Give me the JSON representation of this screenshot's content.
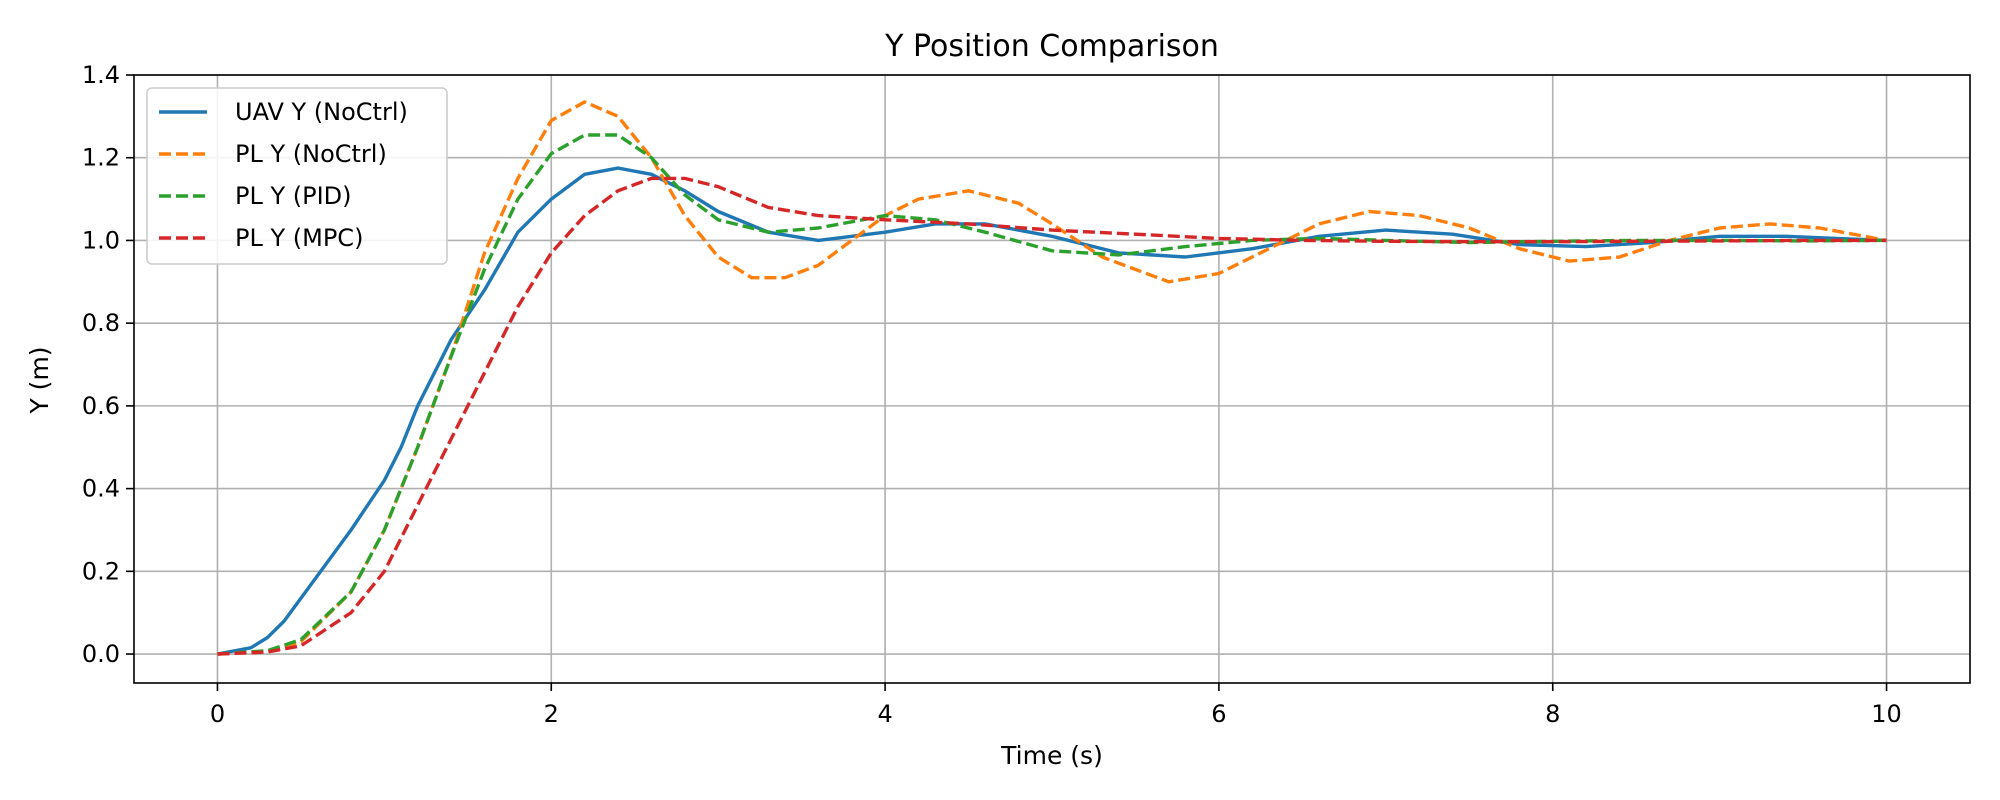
{
  "chart_data": {
    "type": "line",
    "title": "Y Position Comparison",
    "xlabel": "Time (s)",
    "ylabel": "Y (m)",
    "xlim": [
      -0.5,
      10.5
    ],
    "ylim": [
      -0.07,
      1.4
    ],
    "xticks": [
      0,
      2,
      4,
      6,
      8,
      10
    ],
    "yticks": [
      0.0,
      0.2,
      0.4,
      0.6,
      0.8,
      1.0,
      1.2,
      1.4
    ],
    "xtick_labels": [
      "0",
      "2",
      "4",
      "6",
      "8",
      "10"
    ],
    "ytick_labels": [
      "0.0",
      "0.2",
      "0.4",
      "0.6",
      "0.8",
      "1.0",
      "1.2",
      "1.4"
    ],
    "grid": true,
    "legend_position": "top-left",
    "series": [
      {
        "name": "UAV Y (NoCtrl)",
        "color": "#1f77b4",
        "style": "solid",
        "x": [
          0,
          0.2,
          0.3,
          0.4,
          0.6,
          0.8,
          1.0,
          1.1,
          1.2,
          1.4,
          1.6,
          1.8,
          2.0,
          2.2,
          2.4,
          2.6,
          2.8,
          3.0,
          3.3,
          3.6,
          4.0,
          4.3,
          4.6,
          5.0,
          5.4,
          5.8,
          6.2,
          6.6,
          7.0,
          7.4,
          7.8,
          8.2,
          8.6,
          9.0,
          9.4,
          9.7,
          10.0
        ],
        "y": [
          0.0,
          0.015,
          0.04,
          0.08,
          0.19,
          0.3,
          0.42,
          0.5,
          0.6,
          0.76,
          0.88,
          1.02,
          1.1,
          1.16,
          1.175,
          1.16,
          1.12,
          1.07,
          1.02,
          1.0,
          1.02,
          1.04,
          1.04,
          1.01,
          0.97,
          0.96,
          0.98,
          1.01,
          1.025,
          1.015,
          0.99,
          0.985,
          0.995,
          1.01,
          1.01,
          1.005,
          1.0
        ]
      },
      {
        "name": "PL Y (NoCtrl)",
        "color": "#ff7f0e",
        "style": "dashed",
        "x": [
          0,
          0.3,
          0.5,
          0.8,
          1.0,
          1.2,
          1.4,
          1.6,
          1.8,
          2.0,
          2.2,
          2.4,
          2.6,
          2.8,
          3.0,
          3.2,
          3.4,
          3.6,
          3.8,
          4.0,
          4.2,
          4.5,
          4.8,
          5.0,
          5.3,
          5.7,
          6.0,
          6.3,
          6.6,
          6.9,
          7.2,
          7.5,
          7.8,
          8.1,
          8.4,
          8.7,
          9.0,
          9.3,
          9.6,
          10.0
        ],
        "y": [
          0.0,
          0.005,
          0.03,
          0.15,
          0.3,
          0.5,
          0.72,
          0.97,
          1.15,
          1.29,
          1.335,
          1.3,
          1.2,
          1.06,
          0.96,
          0.91,
          0.91,
          0.94,
          1.0,
          1.06,
          1.1,
          1.12,
          1.09,
          1.04,
          0.96,
          0.9,
          0.92,
          0.98,
          1.04,
          1.07,
          1.06,
          1.03,
          0.98,
          0.95,
          0.96,
          1.0,
          1.03,
          1.04,
          1.03,
          1.0
        ]
      },
      {
        "name": "PL Y (PID)",
        "color": "#2ca02c",
        "style": "dashed",
        "x": [
          0,
          0.3,
          0.5,
          0.8,
          1.0,
          1.2,
          1.4,
          1.6,
          1.8,
          2.0,
          2.2,
          2.4,
          2.6,
          2.8,
          3.0,
          3.3,
          3.6,
          4.0,
          4.3,
          4.6,
          5.0,
          5.4,
          5.8,
          6.2,
          6.6,
          7.0,
          7.5,
          8.0,
          8.5,
          9.0,
          9.5,
          10.0
        ],
        "y": [
          0.0,
          0.008,
          0.035,
          0.15,
          0.3,
          0.5,
          0.72,
          0.93,
          1.1,
          1.21,
          1.255,
          1.255,
          1.2,
          1.11,
          1.05,
          1.02,
          1.03,
          1.06,
          1.05,
          1.02,
          0.975,
          0.965,
          0.985,
          1.0,
          1.005,
          1.0,
          0.995,
          0.998,
          1.0,
          1.0,
          0.999,
          1.0
        ]
      },
      {
        "name": "PL Y (MPC)",
        "color": "#d62728",
        "style": "dashed",
        "x": [
          0,
          0.3,
          0.5,
          0.8,
          1.0,
          1.2,
          1.4,
          1.6,
          1.8,
          2.0,
          2.2,
          2.4,
          2.6,
          2.8,
          3.0,
          3.3,
          3.6,
          4.0,
          4.5,
          5.0,
          5.5,
          6.0,
          6.5,
          7.0,
          7.5,
          8.0,
          8.5,
          9.0,
          9.5,
          10.0
        ],
        "y": [
          0.0,
          0.005,
          0.02,
          0.1,
          0.2,
          0.36,
          0.52,
          0.68,
          0.84,
          0.97,
          1.06,
          1.12,
          1.15,
          1.15,
          1.13,
          1.08,
          1.06,
          1.05,
          1.04,
          1.025,
          1.015,
          1.005,
          1.0,
          0.998,
          0.997,
          0.997,
          0.998,
          0.999,
          1.0,
          1.0
        ]
      }
    ]
  }
}
